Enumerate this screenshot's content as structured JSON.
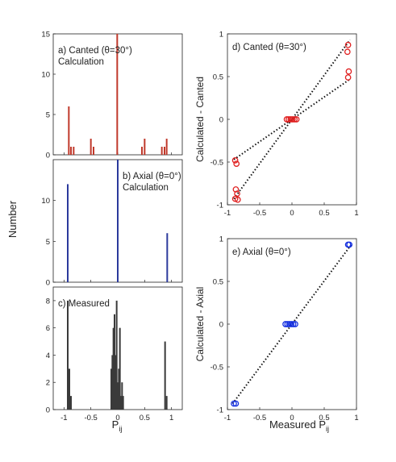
{
  "figure": {
    "left_xlabel_main": "P",
    "left_xlabel_sub": "ij",
    "left_ylabel": "Number",
    "right_xlabel_main": "Measured P",
    "right_xlabel_sub": "ij"
  },
  "chart_data": [
    {
      "id": "a",
      "type": "bar",
      "label_lines": [
        "a) Canted (θ=30°)",
        "Calculation"
      ],
      "xlim": [
        -1.2,
        1.2
      ],
      "ylim": [
        0,
        15
      ],
      "xticks": [],
      "yticks": [
        0,
        5,
        10,
        15
      ],
      "bar_color": "#c0392b",
      "bars": [
        {
          "x": -0.91,
          "y": 6
        },
        {
          "x": -0.87,
          "y": 1
        },
        {
          "x": -0.82,
          "y": 1
        },
        {
          "x": -0.5,
          "y": 2
        },
        {
          "x": -0.45,
          "y": 1
        },
        {
          "x": -0.01,
          "y": 15
        },
        {
          "x": 0.45,
          "y": 1
        },
        {
          "x": 0.5,
          "y": 2
        },
        {
          "x": 0.82,
          "y": 1
        },
        {
          "x": 0.87,
          "y": 1
        },
        {
          "x": 0.91,
          "y": 2
        }
      ]
    },
    {
      "id": "b",
      "type": "bar",
      "label_lines": [
        "b) Axial (θ=0°)",
        "Calculation"
      ],
      "xlim": [
        -1.2,
        1.2
      ],
      "ylim": [
        0,
        15
      ],
      "xticks": [],
      "yticks": [
        0,
        5,
        10
      ],
      "bar_color": "#2b3a9c",
      "bars": [
        {
          "x": -0.93,
          "y": 12
        },
        {
          "x": 0.0,
          "y": 15
        },
        {
          "x": 0.92,
          "y": 6
        }
      ]
    },
    {
      "id": "c",
      "type": "bar",
      "label_lines": [
        "c) Measured"
      ],
      "xlim": [
        -1.2,
        1.2
      ],
      "ylim": [
        0,
        9
      ],
      "xticks": [
        "-1",
        "-0.5",
        "0",
        "0.5",
        "1"
      ],
      "xtick_values": [
        -1,
        -0.5,
        0,
        0.5,
        1
      ],
      "yticks": [
        0,
        2,
        4,
        6,
        8
      ],
      "bar_color": "#3a3a3a",
      "bars": [
        {
          "x": -0.93,
          "y": 8
        },
        {
          "x": -0.9,
          "y": 3
        },
        {
          "x": -0.87,
          "y": 1
        },
        {
          "x": -0.12,
          "y": 3
        },
        {
          "x": -0.1,
          "y": 4
        },
        {
          "x": -0.08,
          "y": 6
        },
        {
          "x": -0.06,
          "y": 7
        },
        {
          "x": -0.04,
          "y": 4
        },
        {
          "x": -0.02,
          "y": 8
        },
        {
          "x": 0.0,
          "y": 2
        },
        {
          "x": 0.02,
          "y": 3
        },
        {
          "x": 0.04,
          "y": 6
        },
        {
          "x": 0.06,
          "y": 1
        },
        {
          "x": 0.08,
          "y": 2
        },
        {
          "x": 0.1,
          "y": 1
        },
        {
          "x": 0.88,
          "y": 5
        },
        {
          "x": 0.91,
          "y": 1
        }
      ]
    },
    {
      "id": "d",
      "type": "scatter",
      "label": "d) Canted (θ=30°)",
      "ylabel": "Calculated - Canted",
      "xlim": [
        -1,
        1
      ],
      "ylim": [
        -1,
        1
      ],
      "xticks": [
        "-1",
        "-0.5",
        "0",
        "0.5",
        "1"
      ],
      "xtick_values": [
        -1,
        -0.5,
        0,
        0.5,
        1
      ],
      "yticks": [
        "-1",
        "-0.5",
        "0",
        "0.5",
        "1"
      ],
      "ytick_values": [
        -1,
        -0.5,
        0,
        0.5,
        1
      ],
      "marker_color": "#e02020",
      "points": [
        {
          "x": -0.88,
          "y": -0.48
        },
        {
          "x": -0.86,
          "y": -0.52
        },
        {
          "x": -0.87,
          "y": -0.82
        },
        {
          "x": -0.85,
          "y": -0.87
        },
        {
          "x": -0.88,
          "y": -0.93
        },
        {
          "x": -0.84,
          "y": -0.94
        },
        {
          "x": -0.08,
          "y": 0.0
        },
        {
          "x": -0.05,
          "y": 0.0
        },
        {
          "x": -0.02,
          "y": 0.0
        },
        {
          "x": 0.01,
          "y": 0.0
        },
        {
          "x": 0.04,
          "y": 0.0
        },
        {
          "x": 0.07,
          "y": 0.0
        },
        {
          "x": 0.87,
          "y": 0.49
        },
        {
          "x": 0.88,
          "y": 0.56
        },
        {
          "x": 0.86,
          "y": 0.79
        },
        {
          "x": 0.87,
          "y": 0.87
        }
      ],
      "fit_lines": [
        {
          "x1": -0.9,
          "y1": -0.47,
          "x2": 0.9,
          "y2": 0.47
        },
        {
          "x1": -0.9,
          "y1": -0.93,
          "x2": 0.9,
          "y2": 0.93
        }
      ]
    },
    {
      "id": "e",
      "type": "scatter",
      "label": "e) Axial (θ=0°)",
      "ylabel": "Calculated - Axial",
      "xlim": [
        -1,
        1
      ],
      "ylim": [
        -1,
        1
      ],
      "xticks": [
        "-1",
        "-0.5",
        "0",
        "0.5",
        "1"
      ],
      "xtick_values": [
        -1,
        -0.5,
        0,
        0.5,
        1
      ],
      "yticks": [
        "-1",
        "-0.5",
        "0",
        "0.5",
        "1"
      ],
      "ytick_values": [
        -1,
        -0.5,
        0,
        0.5,
        1
      ],
      "marker_color": "#1530e0",
      "points": [
        {
          "x": -0.9,
          "y": -0.93
        },
        {
          "x": -0.87,
          "y": -0.93
        },
        {
          "x": -0.1,
          "y": 0.0
        },
        {
          "x": -0.07,
          "y": 0.0
        },
        {
          "x": -0.04,
          "y": 0.0
        },
        {
          "x": -0.01,
          "y": 0.0
        },
        {
          "x": 0.02,
          "y": 0.0
        },
        {
          "x": 0.05,
          "y": 0.0
        },
        {
          "x": 0.87,
          "y": 0.93
        },
        {
          "x": 0.89,
          "y": 0.93
        }
      ],
      "fit_lines": [
        {
          "x1": -0.92,
          "y1": -0.93,
          "x2": 0.92,
          "y2": 0.93
        }
      ]
    }
  ]
}
